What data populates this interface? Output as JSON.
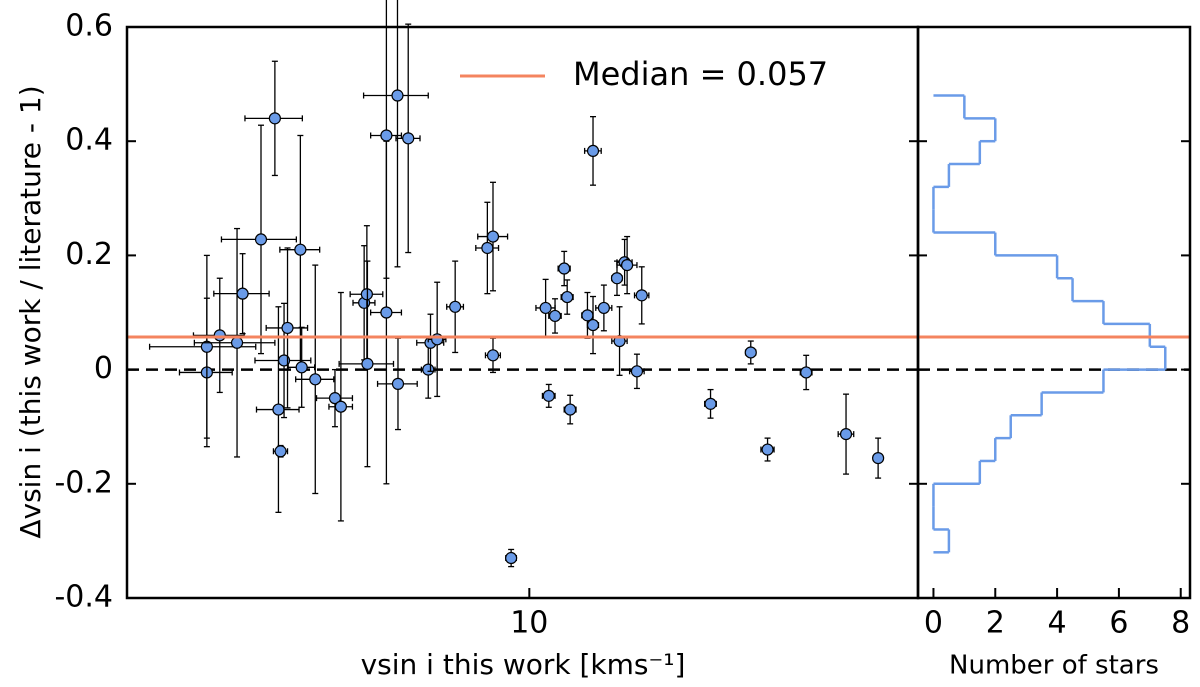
{
  "chart_data": [
    {
      "type": "scatter",
      "ylabel": "Δvsin i (this work / literature - 1)",
      "xlabel": "vsin i this work [kms⁻¹]",
      "xscale": "log",
      "xlim": [
        3,
        32
      ],
      "xticks": [
        10
      ],
      "ylim": [
        -0.4,
        0.6
      ],
      "yticks": [
        0.6,
        0.4,
        0.2,
        0,
        -0.2,
        -0.4
      ],
      "color": "#6a9be8",
      "x": [
        3.81,
        3.81,
        3.96,
        4.17,
        4.24,
        4.48,
        4.67,
        4.72,
        4.75,
        4.8,
        4.85,
        5.04,
        5.06,
        5.27,
        5.59,
        5.69,
        6.1,
        6.15,
        6.16,
        6.52,
        6.52,
        6.75,
        6.74,
        6.96,
        7.39,
        7.44,
        7.59,
        8.01,
        8.82,
        8.97,
        8.97,
        9.47,
        10.5,
        10.6,
        10.8,
        11.1,
        11.2,
        11.3,
        11.9,
        12.1,
        12.1,
        12.5,
        13.0,
        13.1,
        13.3,
        13.4,
        13.8,
        14.0,
        17.2,
        19.4,
        20.4,
        22.9,
        25.8,
        28.4
      ],
      "xerr": [
        0.3,
        0.6,
        0.3,
        0.5,
        0.35,
        0.5,
        0.4,
        0.3,
        0.1,
        0.4,
        0.3,
        0.3,
        0.2,
        0.3,
        0.3,
        0.2,
        0.2,
        0.3,
        0.5,
        0.3,
        0.3,
        0.4,
        0.65,
        0.25,
        0.15,
        0.3,
        0.2,
        0.2,
        0.3,
        0.4,
        0.2,
        0.15,
        0.3,
        0.2,
        0.2,
        0.2,
        0.2,
        0.2,
        0.2,
        0.2,
        0.3,
        0.3,
        0.2,
        0.3,
        0.3,
        0.4,
        0.3,
        0.3,
        0.3,
        0.3,
        0.4,
        0.4,
        0.6,
        0.4
      ],
      "values": [
        -0.005,
        0.04,
        0.06,
        0.047,
        0.133,
        0.228,
        0.44,
        -0.07,
        -0.143,
        0.016,
        0.073,
        0.21,
        0.004,
        -0.017,
        -0.05,
        -0.065,
        0.117,
        0.132,
        0.01,
        0.41,
        0.1,
        -0.025,
        0.48,
        0.405,
        0.0,
        0.047,
        0.053,
        0.11,
        0.213,
        0.233,
        0.025,
        -0.33,
        0.108,
        -0.046,
        0.094,
        0.177,
        0.127,
        -0.07,
        0.095,
        0.078,
        0.383,
        0.108,
        0.16,
        0.05,
        0.188,
        0.183,
        -0.003,
        0.13,
        -0.06,
        0.03,
        -0.14,
        -0.005,
        -0.113,
        -0.155
      ],
      "yerr": [
        0.13,
        0.16,
        0.1,
        0.2,
        0.07,
        0.2,
        0.1,
        0.18,
        0.01,
        0.1,
        0.14,
        0.2,
        0.07,
        0.2,
        0.05,
        0.2,
        0.1,
        0.12,
        0.18,
        0.25,
        0.3,
        0.08,
        0.3,
        0.2,
        0.05,
        0.05,
        0.1,
        0.08,
        0.08,
        0.095,
        0.03,
        0.015,
        0.05,
        0.02,
        0.03,
        0.03,
        0.03,
        0.025,
        0.04,
        0.05,
        0.06,
        0.04,
        0.03,
        0.06,
        0.04,
        0.05,
        0.03,
        0.05,
        0.025,
        0.02,
        0.02,
        0.03,
        0.07,
        0.035
      ],
      "median": 0.057,
      "median_color": "#f4845f",
      "median_label": "Median = 0.057",
      "reference_line": 0
    },
    {
      "type": "histogram",
      "orientation": "horizontal",
      "xlabel": "Number of stars",
      "xlim": [
        -0.5,
        8.3
      ],
      "xticks": [
        0,
        2,
        4,
        6,
        8
      ],
      "color": "#6a9be8",
      "bins": [
        -0.32,
        -0.28,
        -0.24,
        -0.2,
        -0.16,
        -0.12,
        -0.08,
        -0.04,
        0,
        0.04,
        0.08,
        0.12,
        0.16,
        0.2,
        0.24,
        0.28,
        0.32,
        0.36,
        0.4,
        0.44,
        0.48
      ],
      "counts": [
        0.5,
        0,
        0,
        1.5,
        2,
        2.5,
        3.5,
        5.5,
        7.5,
        7,
        5.5,
        4.5,
        4,
        2,
        0,
        0,
        0.5,
        1.5,
        2,
        1
      ]
    }
  ]
}
